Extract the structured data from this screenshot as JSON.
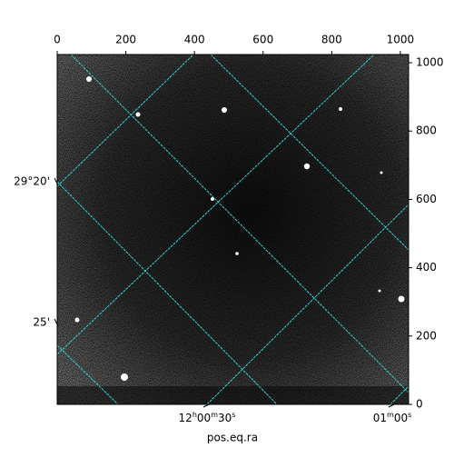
{
  "chart_data": {
    "type": "image",
    "xlabel": "pos.eq.ra",
    "xlim": [
      0,
      1024
    ],
    "xticks": [
      0,
      200,
      400,
      600,
      800,
      1000
    ],
    "ylim": [
      0,
      1024
    ],
    "yticks": [
      0,
      200,
      400,
      600,
      800,
      1000
    ],
    "dec_tick_labels": [
      "29°20'",
      "25'"
    ],
    "ra_tick_labels": [
      {
        "parts": [
          "12",
          "h",
          "00",
          "m",
          "30",
          "s"
        ]
      },
      {
        "parts": [
          "01",
          "m",
          "00",
          "s"
        ]
      }
    ],
    "grid_color": "#2fd3d3"
  }
}
